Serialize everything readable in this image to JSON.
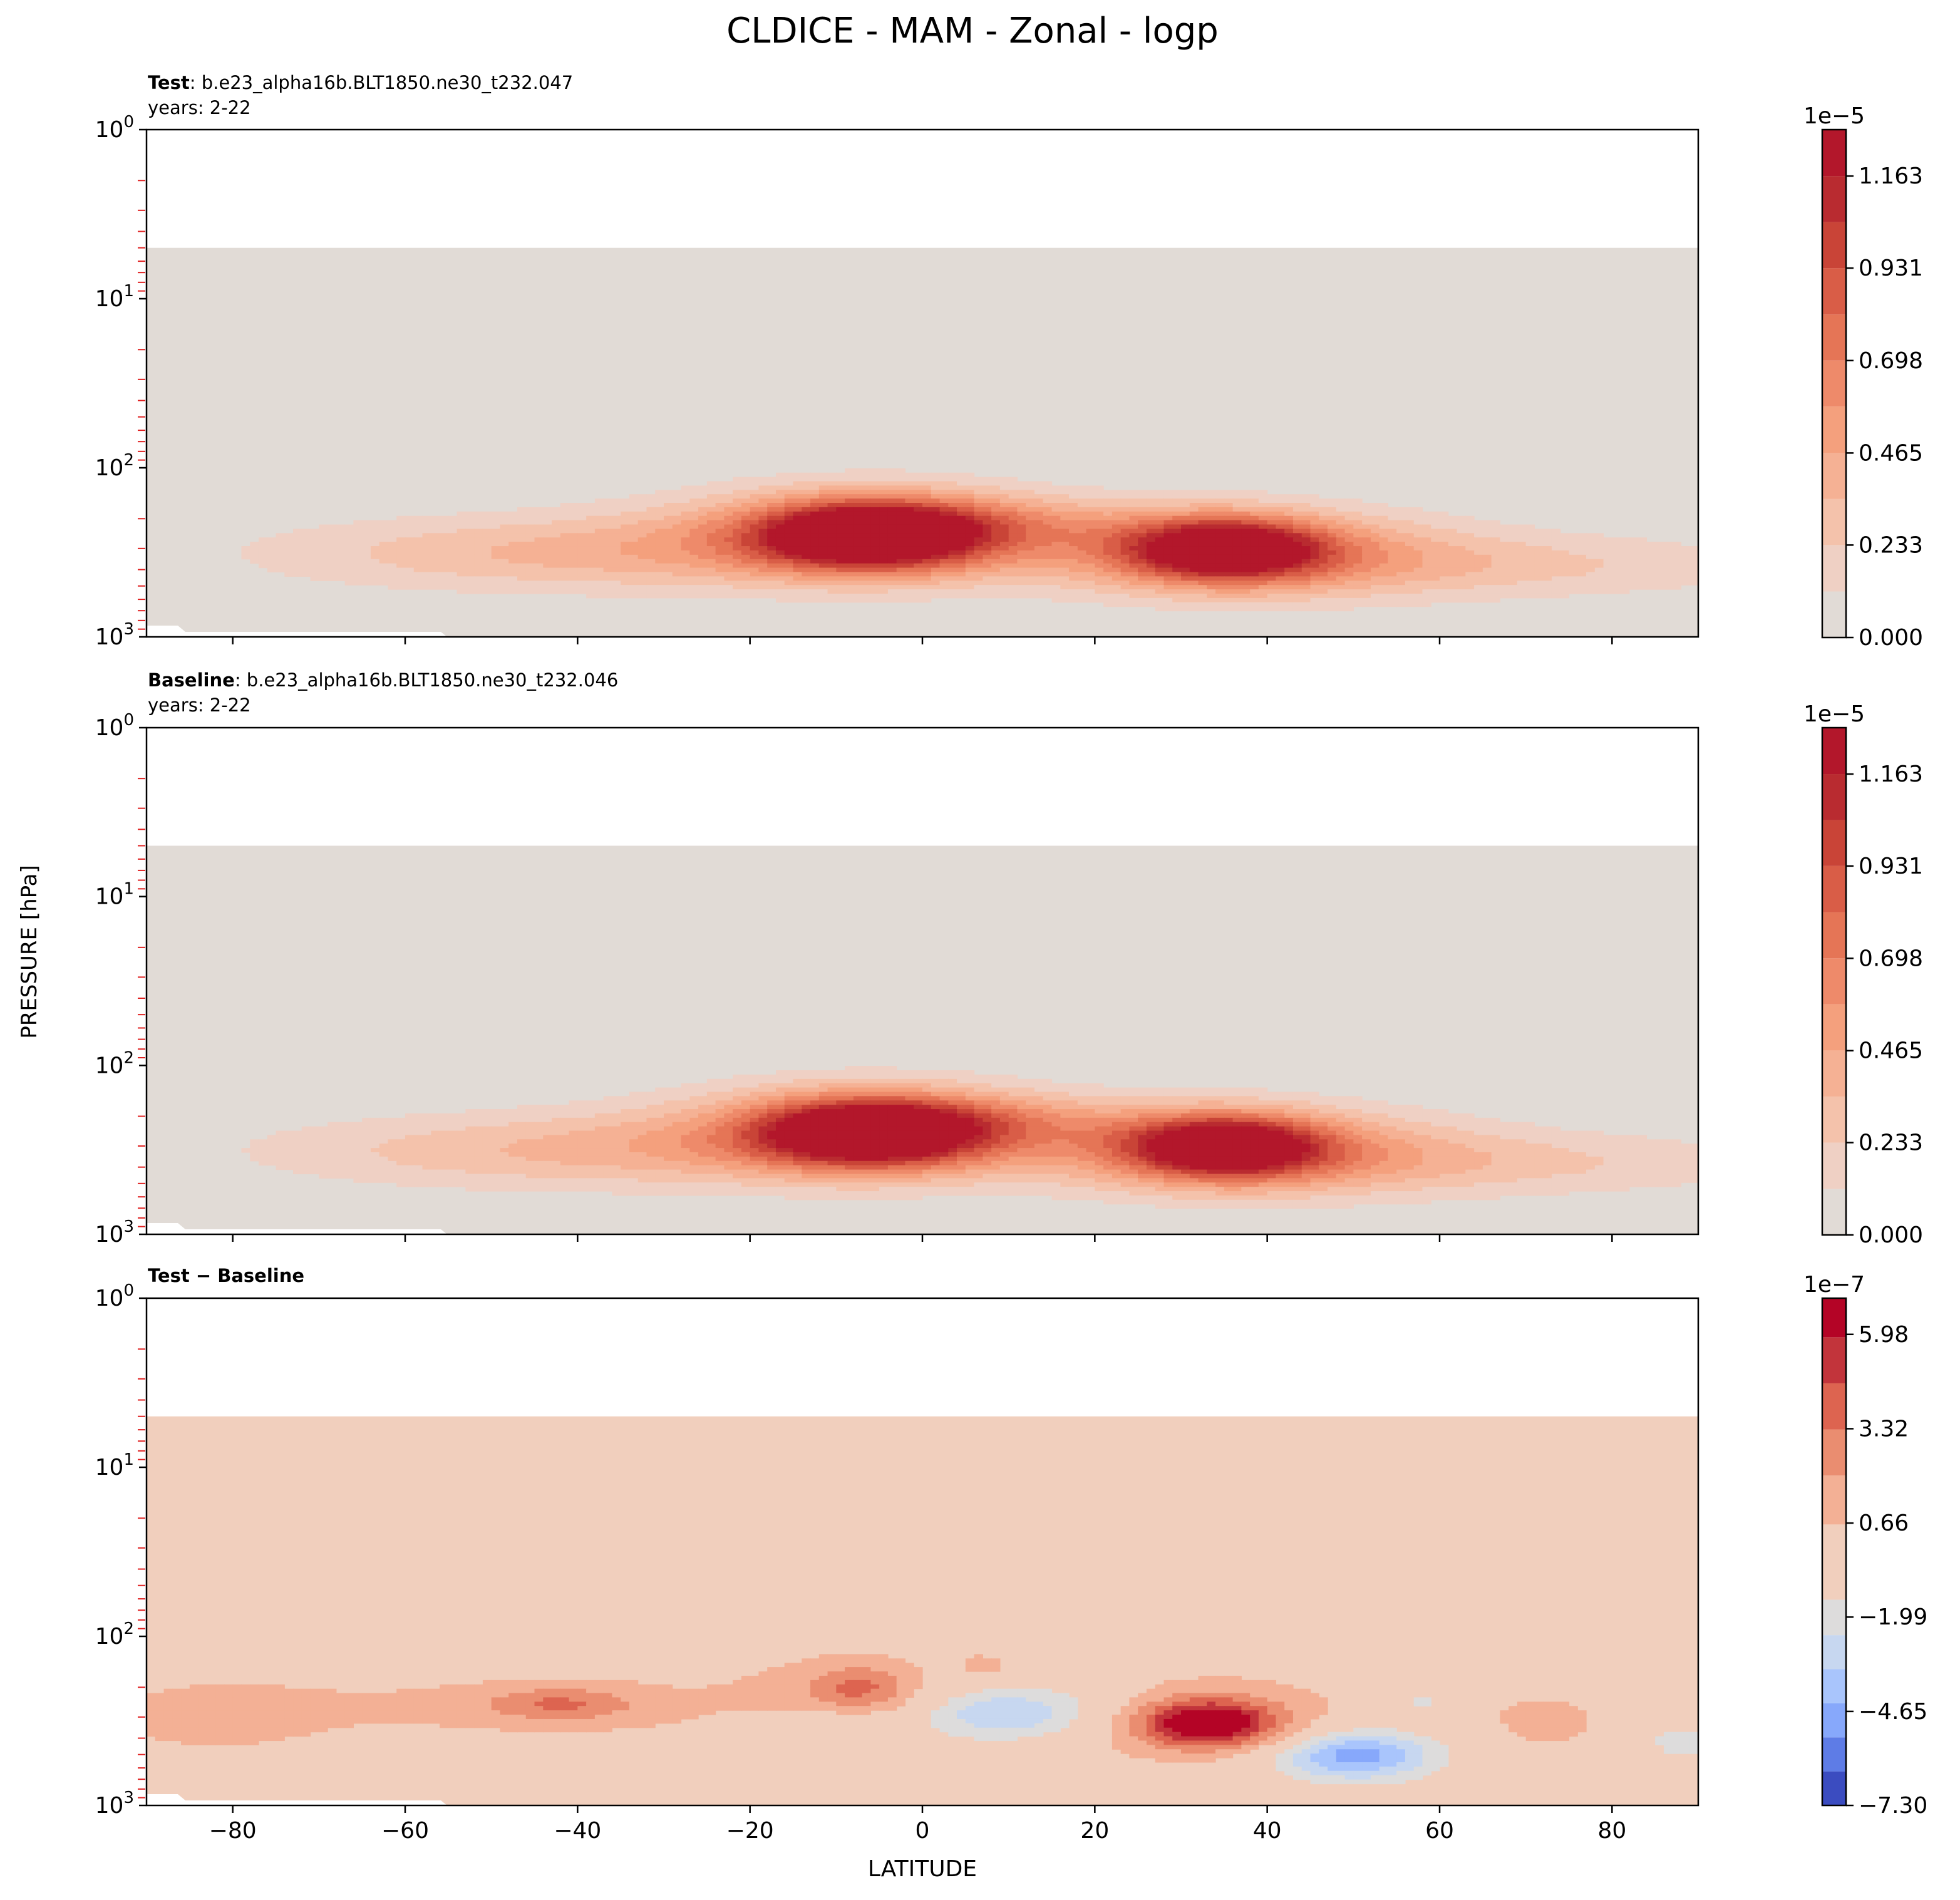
{
  "figure": {
    "title": "CLDICE - MAM - Zonal - logp",
    "ylabel": "PRESSURE [hPa]",
    "xlabel": "LATITUDE"
  },
  "chart_data": [
    {
      "type": "contourf",
      "name": "test",
      "title_bold": "Test",
      "title_rest": ": b.e23_alpha16b.BLT1850.ne30_t232.047",
      "subtitle": "years: 2-22",
      "xlim": [
        -90,
        90
      ],
      "ylim": [
        1000,
        1
      ],
      "yscale": "log",
      "x_ticks": [
        "−80",
        "−60",
        "−40",
        "−20",
        "0",
        "20",
        "40",
        "60",
        "80"
      ],
      "x_tick_values": [
        -80,
        -60,
        -40,
        -20,
        0,
        20,
        40,
        60,
        80
      ],
      "y_ticks": [
        1,
        10,
        100,
        1000
      ],
      "show_x_ticklabels": false,
      "model_top_hPa": 5,
      "colorbar": {
        "exponent": "1e−5",
        "tick_labels": [
          "0.000",
          "0.233",
          "0.465",
          "0.698",
          "0.931",
          "1.163"
        ],
        "levels": [
          0.0,
          0.116,
          0.233,
          0.349,
          0.465,
          0.582,
          0.698,
          0.814,
          0.931,
          1.047,
          1.163,
          1.279
        ],
        "max": 1.28,
        "colors": [
          "#e1dbd6",
          "#efd0c4",
          "#f4c2ab",
          "#f5b194",
          "#f4a07d",
          "#ee8a6a",
          "#e57556",
          "#d95d47",
          "#c94437",
          "#b92b30",
          "#b3172b"
        ]
      },
      "features": [
        {
          "lat": -6,
          "p": 250,
          "amp": 1.25,
          "sx": 9,
          "sy": 0.14
        },
        {
          "lat": -6,
          "p": 240,
          "amp": 0.55,
          "sx": 17,
          "sy": 0.19
        },
        {
          "lat": 35,
          "p": 300,
          "amp": 1.15,
          "sx": 8,
          "sy": 0.13
        },
        {
          "lat": 38,
          "p": 320,
          "amp": 0.55,
          "sx": 17,
          "sy": 0.18
        },
        {
          "lat": -40,
          "p": 320,
          "amp": 0.36,
          "sx": 26,
          "sy": 0.16
        },
        {
          "lat": 70,
          "p": 380,
          "amp": 0.22,
          "sx": 25,
          "sy": 0.14
        },
        {
          "lat": 8,
          "p": 210,
          "amp": 0.2,
          "sx": 12,
          "sy": 0.1
        }
      ]
    },
    {
      "type": "contourf",
      "name": "baseline",
      "title_bold": "Baseline",
      "title_rest": ": b.e23_alpha16b.BLT1850.ne30_t232.046",
      "subtitle": "years: 2-22",
      "xlim": [
        -90,
        90
      ],
      "ylim": [
        1000,
        1
      ],
      "yscale": "log",
      "x_ticks": [
        "−80",
        "−60",
        "−40",
        "−20",
        "0",
        "20",
        "40",
        "60",
        "80"
      ],
      "x_tick_values": [
        -80,
        -60,
        -40,
        -20,
        0,
        20,
        40,
        60,
        80
      ],
      "y_ticks": [
        1,
        10,
        100,
        1000
      ],
      "show_x_ticklabels": false,
      "model_top_hPa": 5,
      "colorbar": {
        "exponent": "1e−5",
        "tick_labels": [
          "0.000",
          "0.233",
          "0.465",
          "0.698",
          "0.931",
          "1.163"
        ],
        "levels": [
          0.0,
          0.116,
          0.233,
          0.349,
          0.465,
          0.582,
          0.698,
          0.814,
          0.931,
          1.047,
          1.163,
          1.279
        ],
        "max": 1.28,
        "colors": [
          "#e1dbd6",
          "#efd0c4",
          "#f4c2ab",
          "#f5b194",
          "#f4a07d",
          "#ee8a6a",
          "#e57556",
          "#d95d47",
          "#c94437",
          "#b92b30",
          "#b3172b"
        ]
      },
      "features": [
        {
          "lat": -6,
          "p": 250,
          "amp": 1.22,
          "sx": 9,
          "sy": 0.14
        },
        {
          "lat": -6,
          "p": 240,
          "amp": 0.55,
          "sx": 17,
          "sy": 0.19
        },
        {
          "lat": 35,
          "p": 300,
          "amp": 1.12,
          "sx": 8,
          "sy": 0.13
        },
        {
          "lat": 38,
          "p": 320,
          "amp": 0.55,
          "sx": 17,
          "sy": 0.18
        },
        {
          "lat": -40,
          "p": 320,
          "amp": 0.35,
          "sx": 26,
          "sy": 0.16
        },
        {
          "lat": 70,
          "p": 380,
          "amp": 0.22,
          "sx": 25,
          "sy": 0.14
        },
        {
          "lat": 8,
          "p": 210,
          "amp": 0.2,
          "sx": 12,
          "sy": 0.1
        }
      ]
    },
    {
      "type": "contourf",
      "name": "difference",
      "title_bold": "Test − Baseline",
      "title_rest": "",
      "subtitle": "",
      "xlim": [
        -90,
        90
      ],
      "ylim": [
        1000,
        1
      ],
      "yscale": "log",
      "x_ticks": [
        "−80",
        "−60",
        "−40",
        "−20",
        "0",
        "20",
        "40",
        "60",
        "80"
      ],
      "x_tick_values": [
        -80,
        -60,
        -40,
        -20,
        0,
        20,
        40,
        60,
        80
      ],
      "y_ticks": [
        1,
        10,
        100,
        1000
      ],
      "show_x_ticklabels": true,
      "model_top_hPa": 5,
      "colorbar": {
        "exponent": "1e−7",
        "tick_labels": [
          "−7.30",
          "−4.65",
          "−1.99",
          "0.66",
          "3.32",
          "5.98"
        ],
        "levels": [
          -7.3,
          -6.34,
          -5.38,
          -4.42,
          -3.46,
          -2.5,
          -1.5,
          0.62,
          2.0,
          3.3,
          4.6,
          5.9,
          7.0
        ],
        "max": 7.0,
        "colors": [
          "#3b4cc0",
          "#5e7ce6",
          "#87a8fb",
          "#a9c5fc",
          "#c7d7f0",
          "#dddcdc",
          "#f1cfbd",
          "#f3b095",
          "#ea8d70",
          "#dd6450",
          "#c2343b",
          "#b40426"
        ]
      },
      "features": [
        {
          "lat": 33,
          "p": 330,
          "amp": 6.3,
          "sx": 5,
          "sy": 0.09
        },
        {
          "lat": 34,
          "p": 320,
          "amp": 2.8,
          "sx": 9,
          "sy": 0.15
        },
        {
          "lat": -7,
          "p": 200,
          "amp": 2.6,
          "sx": 4,
          "sy": 0.09
        },
        {
          "lat": -10,
          "p": 220,
          "amp": 1.2,
          "sx": 8,
          "sy": 0.16
        },
        {
          "lat": -42,
          "p": 250,
          "amp": 2.6,
          "sx": 6,
          "sy": 0.07
        },
        {
          "lat": -45,
          "p": 260,
          "amp": 1.0,
          "sx": 22,
          "sy": 0.12
        },
        {
          "lat": -82,
          "p": 300,
          "amp": 1.1,
          "sx": 9,
          "sy": 0.15
        },
        {
          "lat": 72,
          "p": 330,
          "amp": 1.1,
          "sx": 6,
          "sy": 0.13
        },
        {
          "lat": 7,
          "p": 150,
          "amp": 1.3,
          "sx": 2,
          "sy": 0.05
        },
        {
          "lat": 7,
          "p": 300,
          "amp": -2.1,
          "sx": 7,
          "sy": 0.12
        },
        {
          "lat": 14,
          "p": 270,
          "amp": -1.8,
          "sx": 8,
          "sy": 0.12
        },
        {
          "lat": 50,
          "p": 500,
          "amp": -3.4,
          "sx": 6,
          "sy": 0.1
        },
        {
          "lat": 50,
          "p": 520,
          "amp": -1.7,
          "sx": 11,
          "sy": 0.15
        },
        {
          "lat": -13,
          "p": 320,
          "amp": -1.7,
          "sx": 6,
          "sy": 0.06
        },
        {
          "lat": 88,
          "p": 420,
          "amp": -1.8,
          "sx": 5,
          "sy": 0.12
        },
        {
          "lat": 58,
          "p": 240,
          "amp": -1.7,
          "sx": 2,
          "sy": 0.05
        }
      ]
    }
  ]
}
